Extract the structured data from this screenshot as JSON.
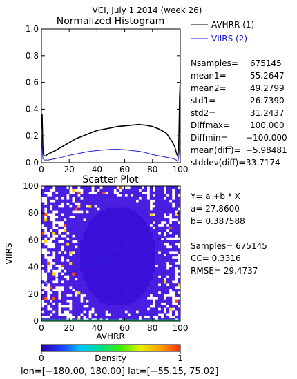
{
  "figure_title": "VCI,  July 1 2014 (week 26)",
  "chart_data": [
    {
      "type": "line",
      "title": "Normalized Histogram",
      "xlim": [
        0,
        100
      ],
      "ylim": [
        0,
        1.0
      ],
      "x_ticks": [
        "0",
        "20",
        "40",
        "60",
        "80",
        "100"
      ],
      "y_ticks": [
        "0.0",
        "0.2",
        "0.4",
        "0.6",
        "0.8",
        "1.0"
      ],
      "legend_position": "outside-right-top",
      "series": [
        {
          "name": "AVHRR (1)",
          "color": "#000000",
          "x": [
            0,
            0.5,
            1,
            1.5,
            2,
            3,
            4,
            6,
            10,
            15,
            20,
            25,
            30,
            35,
            40,
            45,
            50,
            55,
            60,
            65,
            70,
            75,
            80,
            85,
            90,
            94,
            96,
            97,
            98,
            98.5,
            99,
            99.5,
            100
          ],
          "y": [
            0.27,
            0.36,
            0.12,
            0.06,
            0.05,
            0.05,
            0.06,
            0.07,
            0.09,
            0.12,
            0.15,
            0.18,
            0.2,
            0.22,
            0.24,
            0.25,
            0.26,
            0.27,
            0.275,
            0.28,
            0.285,
            0.28,
            0.27,
            0.25,
            0.22,
            0.16,
            0.12,
            0.08,
            0.05,
            0.08,
            0.18,
            0.48,
            0.62
          ]
        },
        {
          "name": "VIIRS (2)",
          "color": "#1a1acc",
          "x": [
            0,
            0.5,
            1,
            2,
            3,
            5,
            10,
            15,
            20,
            25,
            30,
            35,
            40,
            45,
            50,
            55,
            60,
            65,
            70,
            75,
            80,
            85,
            90,
            95,
            97,
            98,
            98.5,
            99,
            99.5,
            100
          ],
          "y": [
            0.25,
            0.12,
            0.03,
            0.02,
            0.02,
            0.02,
            0.03,
            0.04,
            0.055,
            0.065,
            0.075,
            0.085,
            0.09,
            0.095,
            0.1,
            0.1,
            0.097,
            0.09,
            0.085,
            0.075,
            0.06,
            0.05,
            0.04,
            0.03,
            0.02,
            0.01,
            0.02,
            0.05,
            0.14,
            0.22
          ]
        }
      ]
    },
    {
      "type": "scatter",
      "title": "Scatter Plot",
      "xlabel": "AVHRR",
      "ylabel": "VIIRS",
      "xlim": [
        0,
        100
      ],
      "ylim": [
        0,
        100
      ],
      "x_ticks": [
        "0",
        "20",
        "40",
        "60",
        "80",
        "100"
      ],
      "y_ticks": [
        "0",
        "20",
        "40",
        "60",
        "80",
        "100"
      ],
      "regression": {
        "intercept": 27.86,
        "slope": 0.387588
      }
    }
  ],
  "stats": [
    {
      "label": "Nsamples=",
      "value": "675145"
    },
    {
      "label": "mean1=",
      "value": "55.2647"
    },
    {
      "label": "mean2=",
      "value": "49.2799"
    },
    {
      "label": "std1=",
      "value": "26.7390"
    },
    {
      "label": "std2=",
      "value": "31.2437"
    },
    {
      "label": "Diffmax=",
      "value": "100.000"
    },
    {
      "label": "Diffmin=",
      "value": "−100.000"
    },
    {
      "label": "mean(diff)=",
      "value": "−5.98481"
    },
    {
      "label": "stddev(diff)=",
      "value": "33.7174"
    }
  ],
  "regression_text": {
    "equation": "Y= a +b * X",
    "a": "a= 27.8600",
    "b": "b= 0.387588",
    "samples": "Samples= 675145",
    "cc": "CC=  0.3316",
    "rmse": "RMSE= 29.4737"
  },
  "colorbar": {
    "label": "Density",
    "min": "0",
    "max": "1",
    "colors": [
      "#2b00a8",
      "#1a3cff",
      "#00c8ff",
      "#00e08a",
      "#3cf000",
      "#e6f000",
      "#ffa000",
      "#ff2a00"
    ]
  },
  "footer": "lon=[−180.00, 180.00] lat=[−55.15, 75.02]"
}
